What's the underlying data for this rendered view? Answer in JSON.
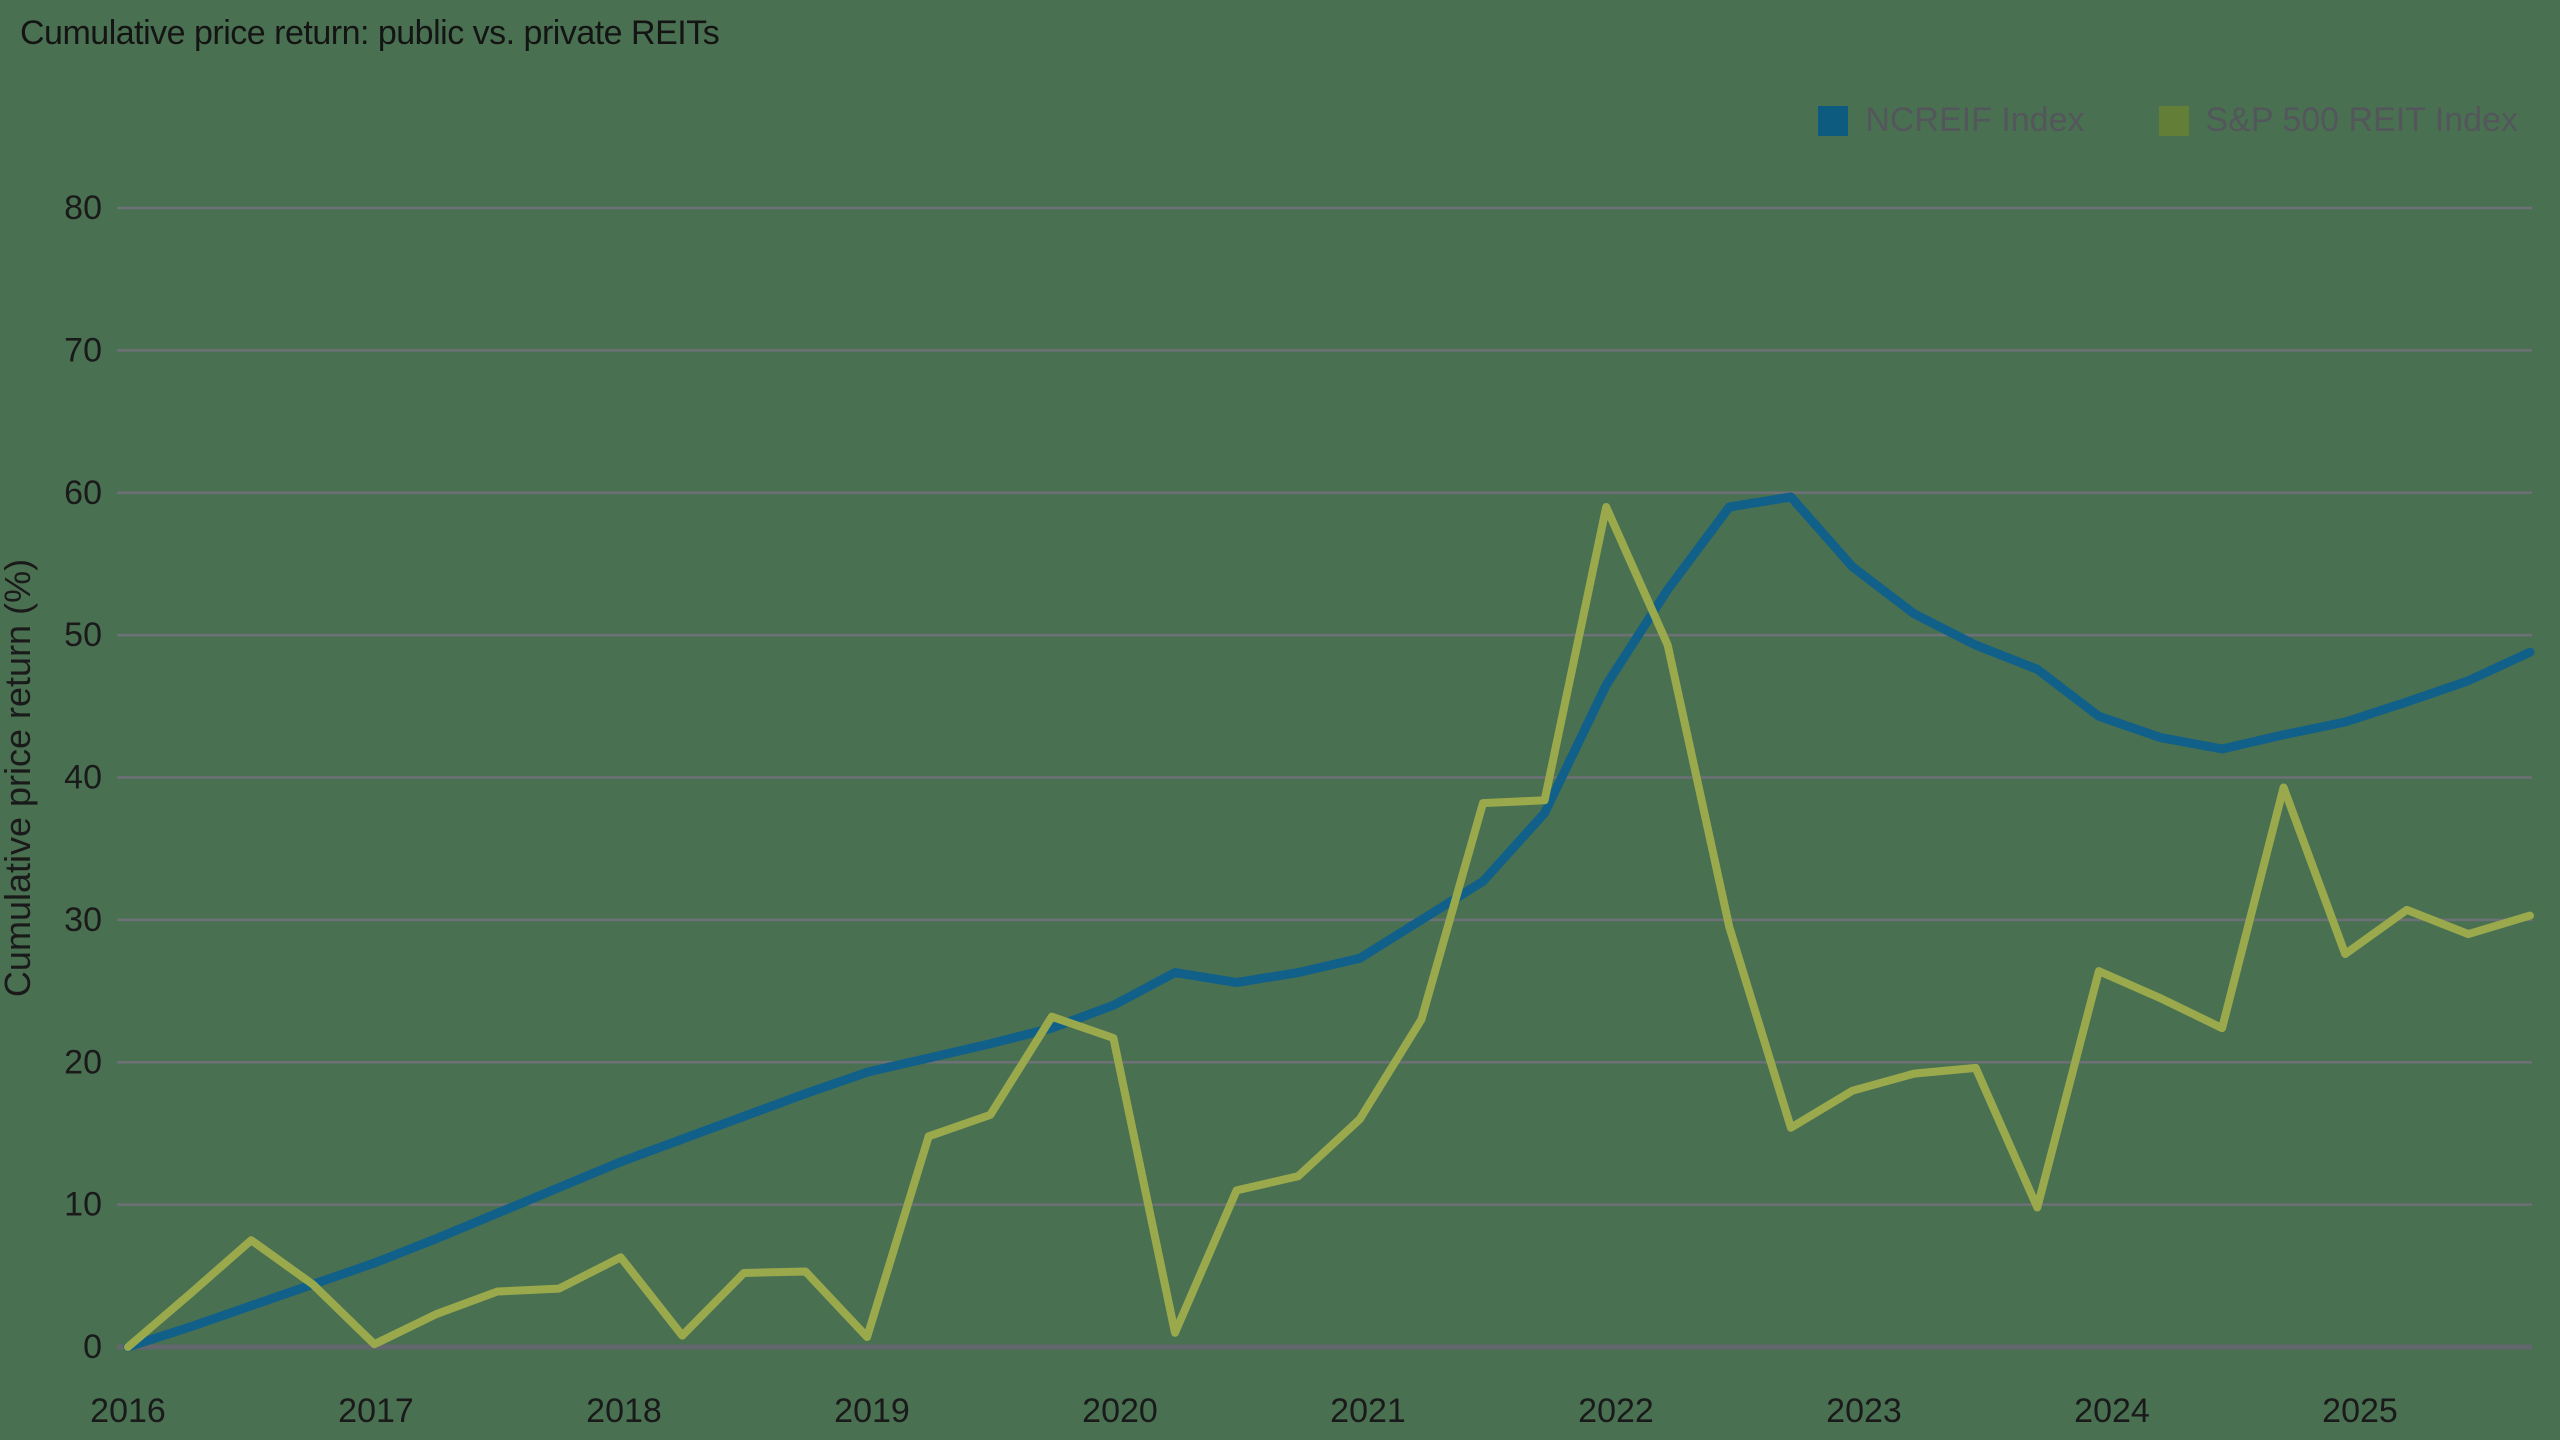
{
  "title": "Cumulative price return: public vs. private REITs",
  "colors": {
    "background": "#4a7052",
    "grid": "#6e7077",
    "zero_axis": "#63666c",
    "title_text": "#141414",
    "tick_text": "#1a1a1a",
    "legend_text": "#53565a"
  },
  "legend": {
    "items": [
      {
        "label": "NCREIF Index",
        "swatch_color": "#0d5c80"
      },
      {
        "label": "S&P 500 REIT Index",
        "swatch_color": "#627e37"
      }
    ]
  },
  "chart_data": {
    "type": "line",
    "title": "Cumulative price return: public vs. private REITs",
    "xlabel": "",
    "ylabel": "Cumulative price return (%)",
    "ylim": [
      0,
      80
    ],
    "yticks": [
      0,
      10,
      20,
      30,
      40,
      50,
      60,
      70,
      80
    ],
    "grid": true,
    "legend_position": "top-right",
    "x_tick_labels": [
      "2016",
      "2017",
      "2018",
      "2019",
      "2020",
      "2021",
      "2022",
      "2023",
      "2024",
      "2025"
    ],
    "x_frequency": "quarterly, 4 points per year starting at each year tick",
    "series": [
      {
        "name": "NCREIF Index",
        "color": "#10608a",
        "line_width": 9,
        "values": [
          0,
          1.4,
          2.9,
          4.4,
          5.9,
          7.6,
          9.4,
          11.2,
          13.0,
          14.6,
          16.2,
          17.8,
          19.3,
          20.3,
          21.3,
          22.4,
          24.0,
          26.3,
          25.6,
          26.3,
          27.3,
          30.0,
          32.7,
          37.5,
          46.5,
          53.2,
          59.0,
          59.7,
          54.8,
          51.5,
          49.3,
          47.6,
          44.3,
          42.8,
          42.0,
          43.0,
          43.9,
          45.3,
          46.8,
          48.8
        ]
      },
      {
        "name": "S&P 500 REIT Index",
        "color": "#9aa94c",
        "line_width": 8,
        "values": [
          0,
          3.7,
          7.5,
          4.4,
          0.2,
          2.3,
          3.9,
          4.1,
          6.3,
          0.8,
          5.2,
          5.3,
          0.7,
          14.8,
          16.3,
          23.2,
          21.7,
          1.0,
          11.0,
          12.0,
          16.0,
          23.0,
          38.2,
          38.4,
          59.0,
          49.3,
          29.5,
          15.4,
          18.0,
          19.2,
          19.6,
          9.8,
          26.4,
          24.5,
          22.4,
          39.3,
          27.6,
          30.7,
          29.0,
          30.3
        ]
      }
    ]
  }
}
